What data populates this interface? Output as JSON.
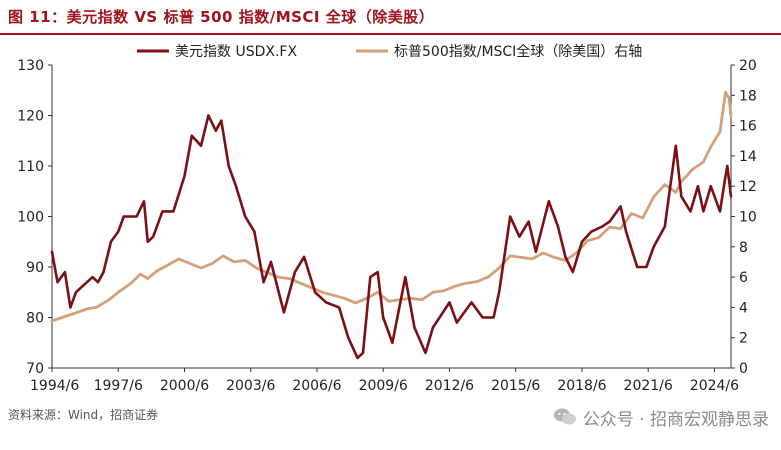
{
  "header": {
    "title": "图 11：美元指数 VS 标普 500 指数/MSCI 全球（除美股）"
  },
  "footer": {
    "source": "资料来源：Wind，招商证券",
    "watermark": "公众号 · 招商宏观静思录"
  },
  "colors": {
    "usd": "#7b0f14",
    "msci": "#d4a07a",
    "title": "#a0121c"
  },
  "chart_data": {
    "type": "line",
    "title": "",
    "x_ticks": [
      "1994/6",
      "1997/6",
      "2000/6",
      "2003/6",
      "2006/6",
      "2009/6",
      "2012/6",
      "2015/6",
      "2018/6",
      "2021/6",
      "2024/6"
    ],
    "xlim": [
      "1994/6",
      "2025/3"
    ],
    "y_left": {
      "ticks": [
        70,
        80,
        90,
        100,
        110,
        120,
        130
      ],
      "lim": [
        70,
        130
      ]
    },
    "y_right": {
      "ticks": [
        0,
        2,
        4,
        6,
        8,
        10,
        12,
        14,
        16,
        18,
        20
      ],
      "lim": [
        0,
        20
      ]
    },
    "legend_position": "top",
    "series": [
      {
        "name": "美元指数 USDX.FX",
        "axis": "left",
        "points": [
          [
            "1994/6",
            93
          ],
          [
            "1994/9",
            87
          ],
          [
            "1995/1",
            89
          ],
          [
            "1995/4",
            82
          ],
          [
            "1995/7",
            85
          ],
          [
            "1995/10",
            86
          ],
          [
            "1996/1",
            87
          ],
          [
            "1996/4",
            88
          ],
          [
            "1996/7",
            87
          ],
          [
            "1996/10",
            89
          ],
          [
            "1997/2",
            95
          ],
          [
            "1997/6",
            97
          ],
          [
            "1997/9",
            100
          ],
          [
            "1997/12",
            100
          ],
          [
            "1998/4",
            100
          ],
          [
            "1998/8",
            103
          ],
          [
            "1998/10",
            95
          ],
          [
            "1999/1",
            96
          ],
          [
            "1999/6",
            101
          ],
          [
            "1999/12",
            101
          ],
          [
            "2000/6",
            108
          ],
          [
            "2000/10",
            116
          ],
          [
            "2001/3",
            114
          ],
          [
            "2001/7",
            120
          ],
          [
            "2001/11",
            117
          ],
          [
            "2002/2",
            119
          ],
          [
            "2002/6",
            110
          ],
          [
            "2002/10",
            106
          ],
          [
            "2003/3",
            100
          ],
          [
            "2003/8",
            97
          ],
          [
            "2004/1",
            87
          ],
          [
            "2004/5",
            91
          ],
          [
            "2004/12",
            81
          ],
          [
            "2005/6",
            89
          ],
          [
            "2005/11",
            92
          ],
          [
            "2006/5",
            85
          ],
          [
            "2006/11",
            83
          ],
          [
            "2007/6",
            82
          ],
          [
            "2007/11",
            76
          ],
          [
            "2008/4",
            72
          ],
          [
            "2008/7",
            73
          ],
          [
            "2008/11",
            88
          ],
          [
            "2009/3",
            89
          ],
          [
            "2009/6",
            80
          ],
          [
            "2009/11",
            75
          ],
          [
            "2010/6",
            88
          ],
          [
            "2010/11",
            78
          ],
          [
            "2011/5",
            73
          ],
          [
            "2011/9",
            78
          ],
          [
            "2012/6",
            83
          ],
          [
            "2012/10",
            79
          ],
          [
            "2013/6",
            83
          ],
          [
            "2013/12",
            80
          ],
          [
            "2014/6",
            80
          ],
          [
            "2014/9",
            85
          ],
          [
            "2015/3",
            100
          ],
          [
            "2015/8",
            96
          ],
          [
            "2016/1",
            99
          ],
          [
            "2016/5",
            93
          ],
          [
            "2016/12",
            103
          ],
          [
            "2017/5",
            98
          ],
          [
            "2017/9",
            92
          ],
          [
            "2018/1",
            89
          ],
          [
            "2018/6",
            95
          ],
          [
            "2018/11",
            97
          ],
          [
            "2019/5",
            98
          ],
          [
            "2019/9",
            99
          ],
          [
            "2020/3",
            102
          ],
          [
            "2020/6",
            97
          ],
          [
            "2020/12",
            90
          ],
          [
            "2021/5",
            90
          ],
          [
            "2021/9",
            94
          ],
          [
            "2022/3",
            98
          ],
          [
            "2022/9",
            114
          ],
          [
            "2022/12",
            104
          ],
          [
            "2023/5",
            101
          ],
          [
            "2023/9",
            106
          ],
          [
            "2023/12",
            101
          ],
          [
            "2024/4",
            106
          ],
          [
            "2024/9",
            101
          ],
          [
            "2024/12",
            108
          ],
          [
            "2025/1",
            110
          ],
          [
            "2025/3",
            104
          ]
        ]
      },
      {
        "name": "标普500指数/MSCI全球（除美国）右轴",
        "axis": "right",
        "points": [
          [
            "1994/6",
            3.1
          ],
          [
            "1995/1",
            3.4
          ],
          [
            "1995/6",
            3.6
          ],
          [
            "1996/1",
            3.9
          ],
          [
            "1996/6",
            4.0
          ],
          [
            "1997/1",
            4.5
          ],
          [
            "1997/6",
            5.0
          ],
          [
            "1998/1",
            5.6
          ],
          [
            "1998/6",
            6.2
          ],
          [
            "1998/10",
            5.9
          ],
          [
            "1999/3",
            6.4
          ],
          [
            "1999/9",
            6.8
          ],
          [
            "2000/3",
            7.2
          ],
          [
            "2000/9",
            6.9
          ],
          [
            "2001/3",
            6.6
          ],
          [
            "2001/9",
            6.9
          ],
          [
            "2002/3",
            7.4
          ],
          [
            "2002/9",
            7.0
          ],
          [
            "2003/3",
            7.1
          ],
          [
            "2003/9",
            6.6
          ],
          [
            "2004/3",
            6.3
          ],
          [
            "2004/9",
            6.0
          ],
          [
            "2005/3",
            5.9
          ],
          [
            "2005/9",
            5.6
          ],
          [
            "2006/3",
            5.3
          ],
          [
            "2006/9",
            5.0
          ],
          [
            "2007/3",
            4.8
          ],
          [
            "2007/9",
            4.6
          ],
          [
            "2008/3",
            4.3
          ],
          [
            "2008/9",
            4.6
          ],
          [
            "2009/3",
            5.0
          ],
          [
            "2009/9",
            4.4
          ],
          [
            "2010/3",
            4.5
          ],
          [
            "2010/9",
            4.6
          ],
          [
            "2011/3",
            4.5
          ],
          [
            "2011/9",
            5.0
          ],
          [
            "2012/3",
            5.1
          ],
          [
            "2012/9",
            5.4
          ],
          [
            "2013/3",
            5.6
          ],
          [
            "2013/9",
            5.7
          ],
          [
            "2014/3",
            6.0
          ],
          [
            "2014/9",
            6.6
          ],
          [
            "2015/3",
            7.4
          ],
          [
            "2015/9",
            7.3
          ],
          [
            "2016/3",
            7.2
          ],
          [
            "2016/9",
            7.6
          ],
          [
            "2017/3",
            7.3
          ],
          [
            "2017/9",
            7.1
          ],
          [
            "2018/3",
            7.6
          ],
          [
            "2018/9",
            8.4
          ],
          [
            "2019/3",
            8.6
          ],
          [
            "2019/9",
            9.3
          ],
          [
            "2020/3",
            9.2
          ],
          [
            "2020/9",
            10.2
          ],
          [
            "2021/3",
            9.9
          ],
          [
            "2021/9",
            11.3
          ],
          [
            "2022/3",
            12.1
          ],
          [
            "2022/9",
            11.6
          ],
          [
            "2022/12",
            12.3
          ],
          [
            "2023/6",
            13.1
          ],
          [
            "2023/12",
            13.6
          ],
          [
            "2024/4",
            14.6
          ],
          [
            "2024/9",
            15.6
          ],
          [
            "2024/12",
            18.2
          ],
          [
            "2025/2",
            17.8
          ],
          [
            "2025/3",
            16.6
          ]
        ]
      }
    ]
  }
}
